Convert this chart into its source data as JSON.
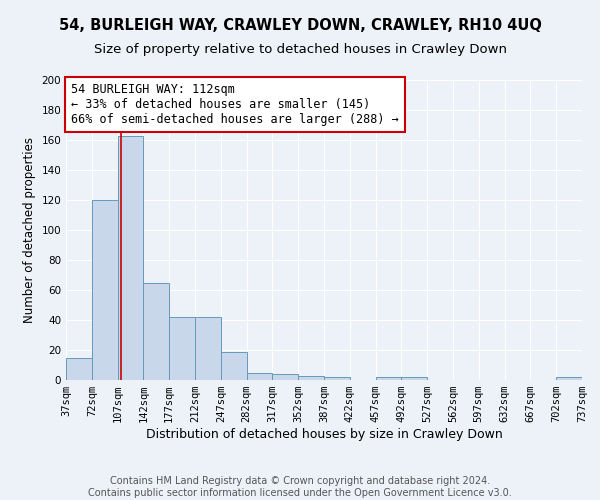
{
  "title": "54, BURLEIGH WAY, CRAWLEY DOWN, CRAWLEY, RH10 4UQ",
  "subtitle": "Size of property relative to detached houses in Crawley Down",
  "xlabel": "Distribution of detached houses by size in Crawley Down",
  "ylabel": "Number of detached properties",
  "bin_edges": [
    37,
    72,
    107,
    142,
    177,
    212,
    247,
    282,
    317,
    352,
    387,
    422,
    457,
    492,
    527,
    562,
    597,
    632,
    667,
    702,
    737
  ],
  "bar_heights": [
    15,
    120,
    163,
    65,
    42,
    42,
    19,
    5,
    4,
    3,
    2,
    0,
    2,
    2,
    0,
    0,
    0,
    0,
    0,
    2
  ],
  "bar_color": "#c8d8ea",
  "bar_edge_color": "#6699bb",
  "background_color": "#edf2f8",
  "grid_color": "#ffffff",
  "property_line_x": 112,
  "property_line_color": "#cc0000",
  "annotation_text": "54 BURLEIGH WAY: 112sqm\n← 33% of detached houses are smaller (145)\n66% of semi-detached houses are larger (288) →",
  "annotation_box_color": "#ffffff",
  "annotation_box_edge": "#cc0000",
  "ylim": [
    0,
    200
  ],
  "yticks": [
    0,
    20,
    40,
    60,
    80,
    100,
    120,
    140,
    160,
    180,
    200
  ],
  "footer_text": "Contains HM Land Registry data © Crown copyright and database right 2024.\nContains public sector information licensed under the Open Government Licence v3.0.",
  "title_fontsize": 10.5,
  "subtitle_fontsize": 9.5,
  "xlabel_fontsize": 9,
  "ylabel_fontsize": 8.5,
  "tick_fontsize": 7.5,
  "annotation_fontsize": 8.5,
  "footer_fontsize": 7
}
